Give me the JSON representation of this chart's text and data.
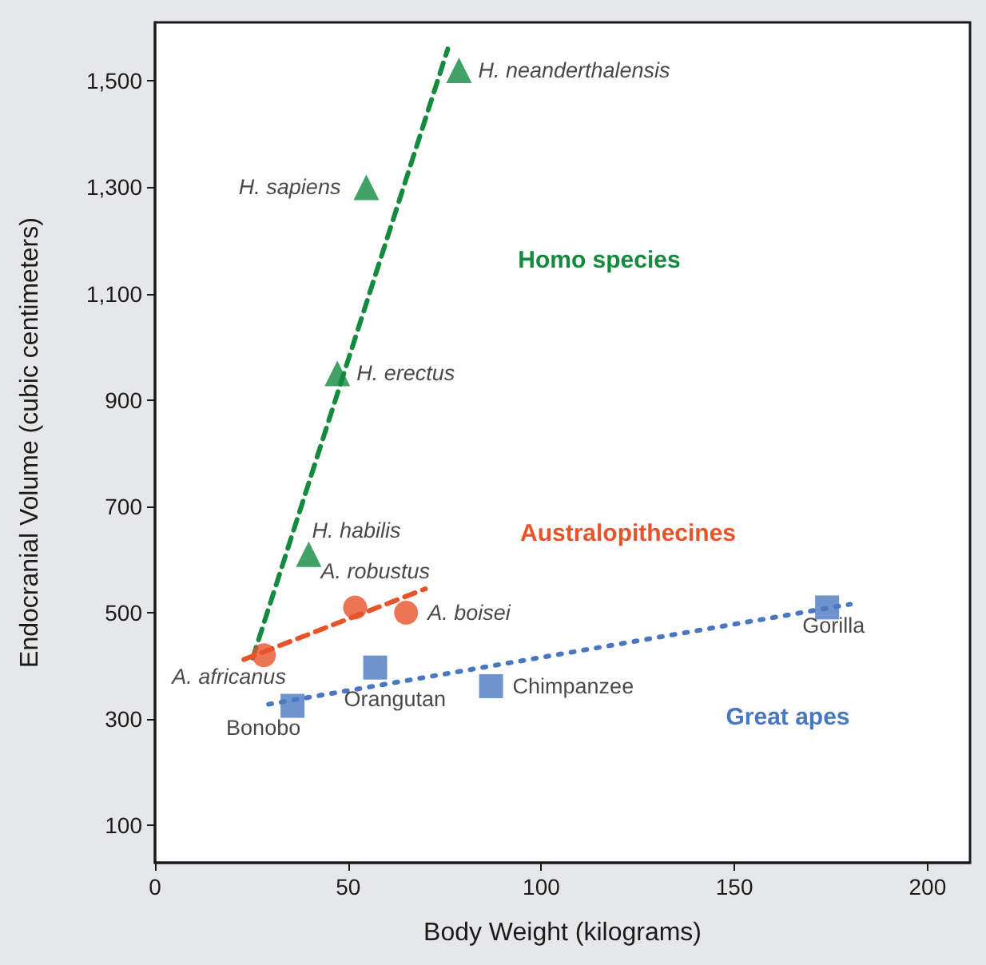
{
  "chart_data": {
    "type": "scatter",
    "xlabel": "Body Weight (kilograms)",
    "ylabel": "Endocranial Volume (cubic centimeters)",
    "xlim": [
      0,
      211
    ],
    "xticks": [
      0,
      50,
      100,
      150,
      200
    ],
    "ylim": [
      30,
      1610
    ],
    "yticks": [
      100,
      300,
      500,
      700,
      900,
      {
        "value": 1100,
        "label": "1,100"
      },
      {
        "value": 1300,
        "label": "1,300"
      },
      {
        "value": 1500,
        "label": "1,500"
      }
    ],
    "grid": false,
    "legend": false,
    "series": [
      {
        "name": "Homo species",
        "color": "#138a3e",
        "marker": "triangle",
        "x": [
          78.7,
          54.7,
          47.2,
          39.8
        ],
        "values": [
          1520,
          1300,
          950,
          610
        ]
      },
      {
        "name": "Australopithecines",
        "color": "#e8532a",
        "marker": "circle",
        "x": [
          28.2,
          51.8,
          65
        ],
        "values": [
          420,
          510,
          500
        ]
      },
      {
        "name": "Great apes",
        "color": "#4a78c0",
        "marker": "square",
        "x": [
          35.6,
          57,
          87,
          174
        ],
        "values": [
          325,
          397,
          362,
          510
        ]
      },
      {
        "type": "line",
        "color": "#138a3e",
        "line_style": "dashed",
        "marker": "none",
        "x": [
          25.3,
          75.8
        ],
        "values": [
          415,
          1560
        ]
      },
      {
        "type": "line",
        "color": "#e8532a",
        "line_style": "dashed",
        "marker": "none",
        "x": [
          23,
          70
        ],
        "values": [
          412,
          545
        ]
      },
      {
        "type": "line",
        "color": "#4a78c0",
        "line_style": "dotted",
        "marker": "none",
        "x": [
          29.4,
          180
        ],
        "values": [
          328,
          516
        ]
      }
    ],
    "annotations": [
      {
        "text": "H. neanderthalensis",
        "x": 78.7,
        "y": 1520
      },
      {
        "text": "H. sapiens",
        "x": 54.7,
        "y": 1300
      },
      {
        "text": "H. erectus",
        "x": 47.2,
        "y": 950
      },
      {
        "text": "H. habilis",
        "x": 39.8,
        "y": 610
      },
      {
        "text": "A. africanus",
        "x": 28.2,
        "y": 420
      },
      {
        "text": "A. robustus",
        "x": 51.8,
        "y": 510
      },
      {
        "text": "A. boisei",
        "x": 65,
        "y": 500
      },
      {
        "text": "Bonobo",
        "x": 35.6,
        "y": 325
      },
      {
        "text": "Orangutan",
        "x": 57,
        "y": 397
      },
      {
        "text": "Chimpanzee",
        "x": 87,
        "y": 362
      },
      {
        "text": "Gorilla",
        "x": 174,
        "y": 510
      }
    ]
  }
}
